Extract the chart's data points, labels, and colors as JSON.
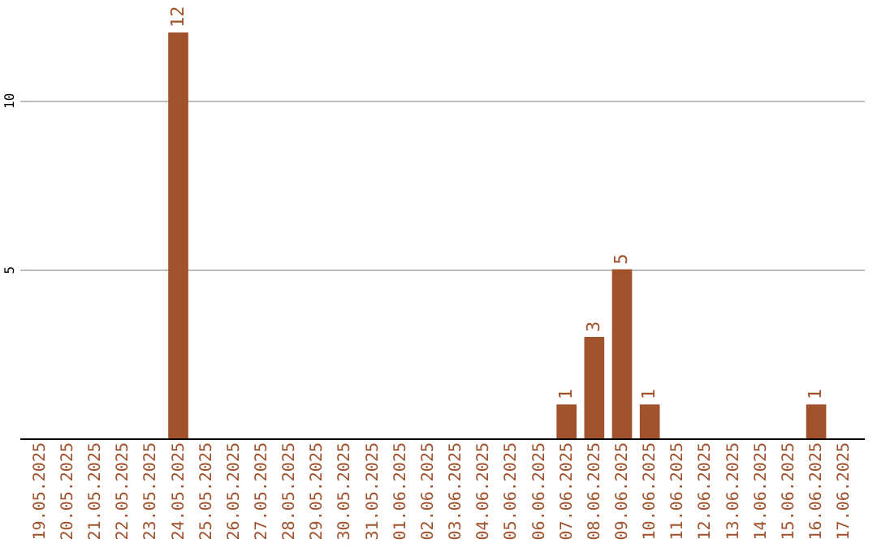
{
  "chart_data": {
    "type": "bar",
    "categories": [
      "19.05.2025",
      "20.05.2025",
      "21.05.2025",
      "22.05.2025",
      "23.05.2025",
      "24.05.2025",
      "25.05.2025",
      "26.05.2025",
      "27.05.2025",
      "28.05.2025",
      "29.05.2025",
      "30.05.2025",
      "31.05.2025",
      "01.06.2025",
      "02.06.2025",
      "03.06.2025",
      "04.06.2025",
      "05.06.2025",
      "06.06.2025",
      "07.06.2025",
      "08.06.2025",
      "09.06.2025",
      "10.06.2025",
      "11.06.2025",
      "12.06.2025",
      "13.06.2025",
      "14.06.2025",
      "15.06.2025",
      "16.06.2025",
      "17.06.2025"
    ],
    "values": [
      0,
      0,
      0,
      0,
      0,
      12,
      0,
      0,
      0,
      0,
      0,
      0,
      0,
      0,
      0,
      0,
      0,
      0,
      0,
      1,
      3,
      5,
      1,
      0,
      0,
      0,
      0,
      0,
      1,
      0
    ],
    "value_labels": [
      null,
      null,
      null,
      null,
      null,
      "12",
      null,
      null,
      null,
      null,
      null,
      null,
      null,
      null,
      null,
      null,
      null,
      null,
      null,
      "1",
      "3",
      "5",
      "1",
      null,
      null,
      null,
      null,
      null,
      "1",
      null
    ],
    "color": "#a0522d",
    "ylim": [
      0,
      12
    ],
    "yticks": [
      5,
      10
    ],
    "grid": "y"
  }
}
